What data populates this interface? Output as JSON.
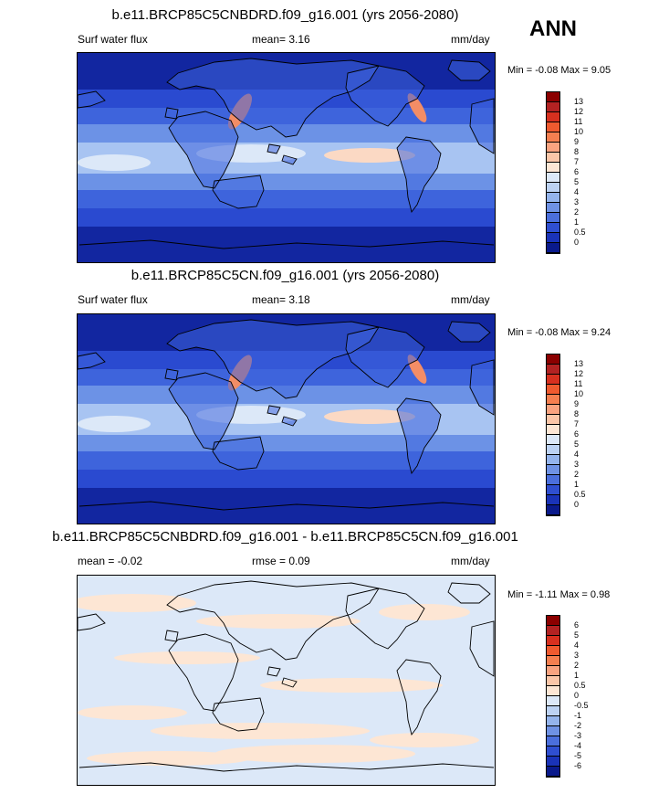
{
  "season": "ANN",
  "units": "mm/day",
  "panels": [
    {
      "title": "b.e11.BRCP85C5CNBDRD.f09_g16.001 (yrs 2056-2080)",
      "left_text": "Surf water flux",
      "stat_text": "mean=  3.16",
      "units": "mm/day",
      "minmax": "Min = -0.08 Max =   9.05",
      "colorbar": {
        "labels": [
          "13",
          "12",
          "11",
          "10",
          "9",
          "8",
          "7",
          "6",
          "5",
          "4",
          "3",
          "2",
          "1",
          "0.5",
          "0"
        ],
        "colors": [
          "#8b0000",
          "#b22222",
          "#d7301f",
          "#ef5a2f",
          "#f57f50",
          "#f9a380",
          "#fbc6a8",
          "#fde6d4",
          "#dce8f8",
          "#bcd2f3",
          "#94b4ec",
          "#6f92e4",
          "#4b6fdc",
          "#2f4fd0",
          "#1a33b8",
          "#0a1a8c"
        ]
      },
      "map_palette": [
        "#1226a0",
        "#2a4ad0",
        "#3e64dc",
        "#6c92e6",
        "#a8c4f2",
        "#dce8f8",
        "#fbd9c4",
        "#f38d66"
      ]
    },
    {
      "title": "b.e11.BRCP85C5CN.f09_g16.001 (yrs 2056-2080)",
      "left_text": "Surf water flux",
      "stat_text": "mean=  3.18",
      "units": "mm/day",
      "minmax": "Min = -0.08 Max =   9.24",
      "colorbar": {
        "labels": [
          "13",
          "12",
          "11",
          "10",
          "9",
          "8",
          "7",
          "6",
          "5",
          "4",
          "3",
          "2",
          "1",
          "0.5",
          "0"
        ],
        "colors": [
          "#8b0000",
          "#b22222",
          "#d7301f",
          "#ef5a2f",
          "#f57f50",
          "#f9a380",
          "#fbc6a8",
          "#fde6d4",
          "#dce8f8",
          "#bcd2f3",
          "#94b4ec",
          "#6f92e4",
          "#4b6fdc",
          "#2f4fd0",
          "#1a33b8",
          "#0a1a8c"
        ]
      },
      "map_palette": [
        "#1226a0",
        "#2a4ad0",
        "#3e64dc",
        "#6c92e6",
        "#a8c4f2",
        "#dce8f8",
        "#fbd9c4",
        "#f38d66"
      ]
    },
    {
      "title": "b.e11.BRCP85C5CNBDRD.f09_g16.001 - b.e11.BRCP85C5CN.f09_g16.001",
      "left_text": "mean =  -0.02",
      "stat_text": "rmse =   0.09",
      "units": "mm/day",
      "minmax": "Min =  -1.11 Max =   0.98",
      "colorbar": {
        "labels": [
          "6",
          "5",
          "4",
          "3",
          "2",
          "1",
          "0.5",
          "0",
          "-0.5",
          "-1",
          "-2",
          "-3",
          "-4",
          "-5",
          "-6"
        ],
        "colors": [
          "#8b0000",
          "#b22222",
          "#d7301f",
          "#ef5a2f",
          "#f57f50",
          "#f9a380",
          "#fbc6a8",
          "#fde6d4",
          "#dce8f8",
          "#bcd2f3",
          "#94b4ec",
          "#6f92e4",
          "#4b6fdc",
          "#2f4fd0",
          "#1a33b8",
          "#0a1a8c"
        ]
      },
      "map_palette": [
        "#dce8f8",
        "#fde6d4",
        "#cfe0f6",
        "#fbd9c4"
      ]
    }
  ]
}
